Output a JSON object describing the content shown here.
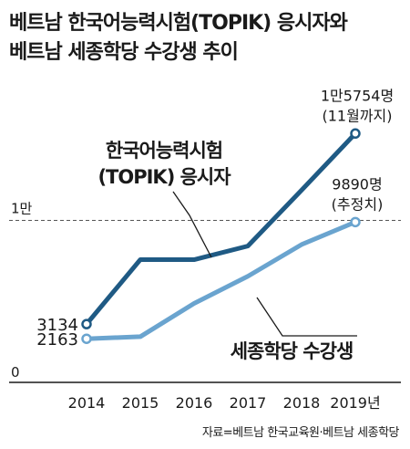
{
  "title_lines": [
    "베트남 한국어능력시험(TOPIK) 응시자와",
    "베트남 세종학당 수강생 추이"
  ],
  "source": "자료=베트남 한국교육원·베트남 세종학당",
  "colors": {
    "topik": "#1f5a84",
    "sejong": "#6aa4cf",
    "text": "#1a1a1a",
    "grid": "#555555"
  },
  "chart_data": {
    "type": "line",
    "x": [
      "2014",
      "2015",
      "2016",
      "2017",
      "2018",
      "2019년"
    ],
    "ylim": [
      0,
      16600
    ],
    "yticks": [
      {
        "value": 0,
        "label": "0"
      },
      {
        "value": 10000,
        "label": "1만"
      }
    ],
    "reference_line": 10000,
    "series": [
      {
        "name": "한국어능력시험 (TOPIK) 응시자",
        "label_lines": [
          "한국어능력시험",
          "(TOPIK) 응시자"
        ],
        "color_key": "topik",
        "values": [
          3134,
          7400,
          7400,
          8300,
          12000,
          15754
        ],
        "start_label": "3134",
        "end_label_lines": [
          "1만5754명",
          "(11월까지)"
        ]
      },
      {
        "name": "세종학당 수강생",
        "label_lines": [
          "세종학당 수강생"
        ],
        "color_key": "sejong",
        "values": [
          2163,
          2300,
          4500,
          6300,
          8400,
          9890
        ],
        "start_label": "2163",
        "end_label_lines": [
          "9890명",
          "(추정치)"
        ]
      }
    ]
  }
}
